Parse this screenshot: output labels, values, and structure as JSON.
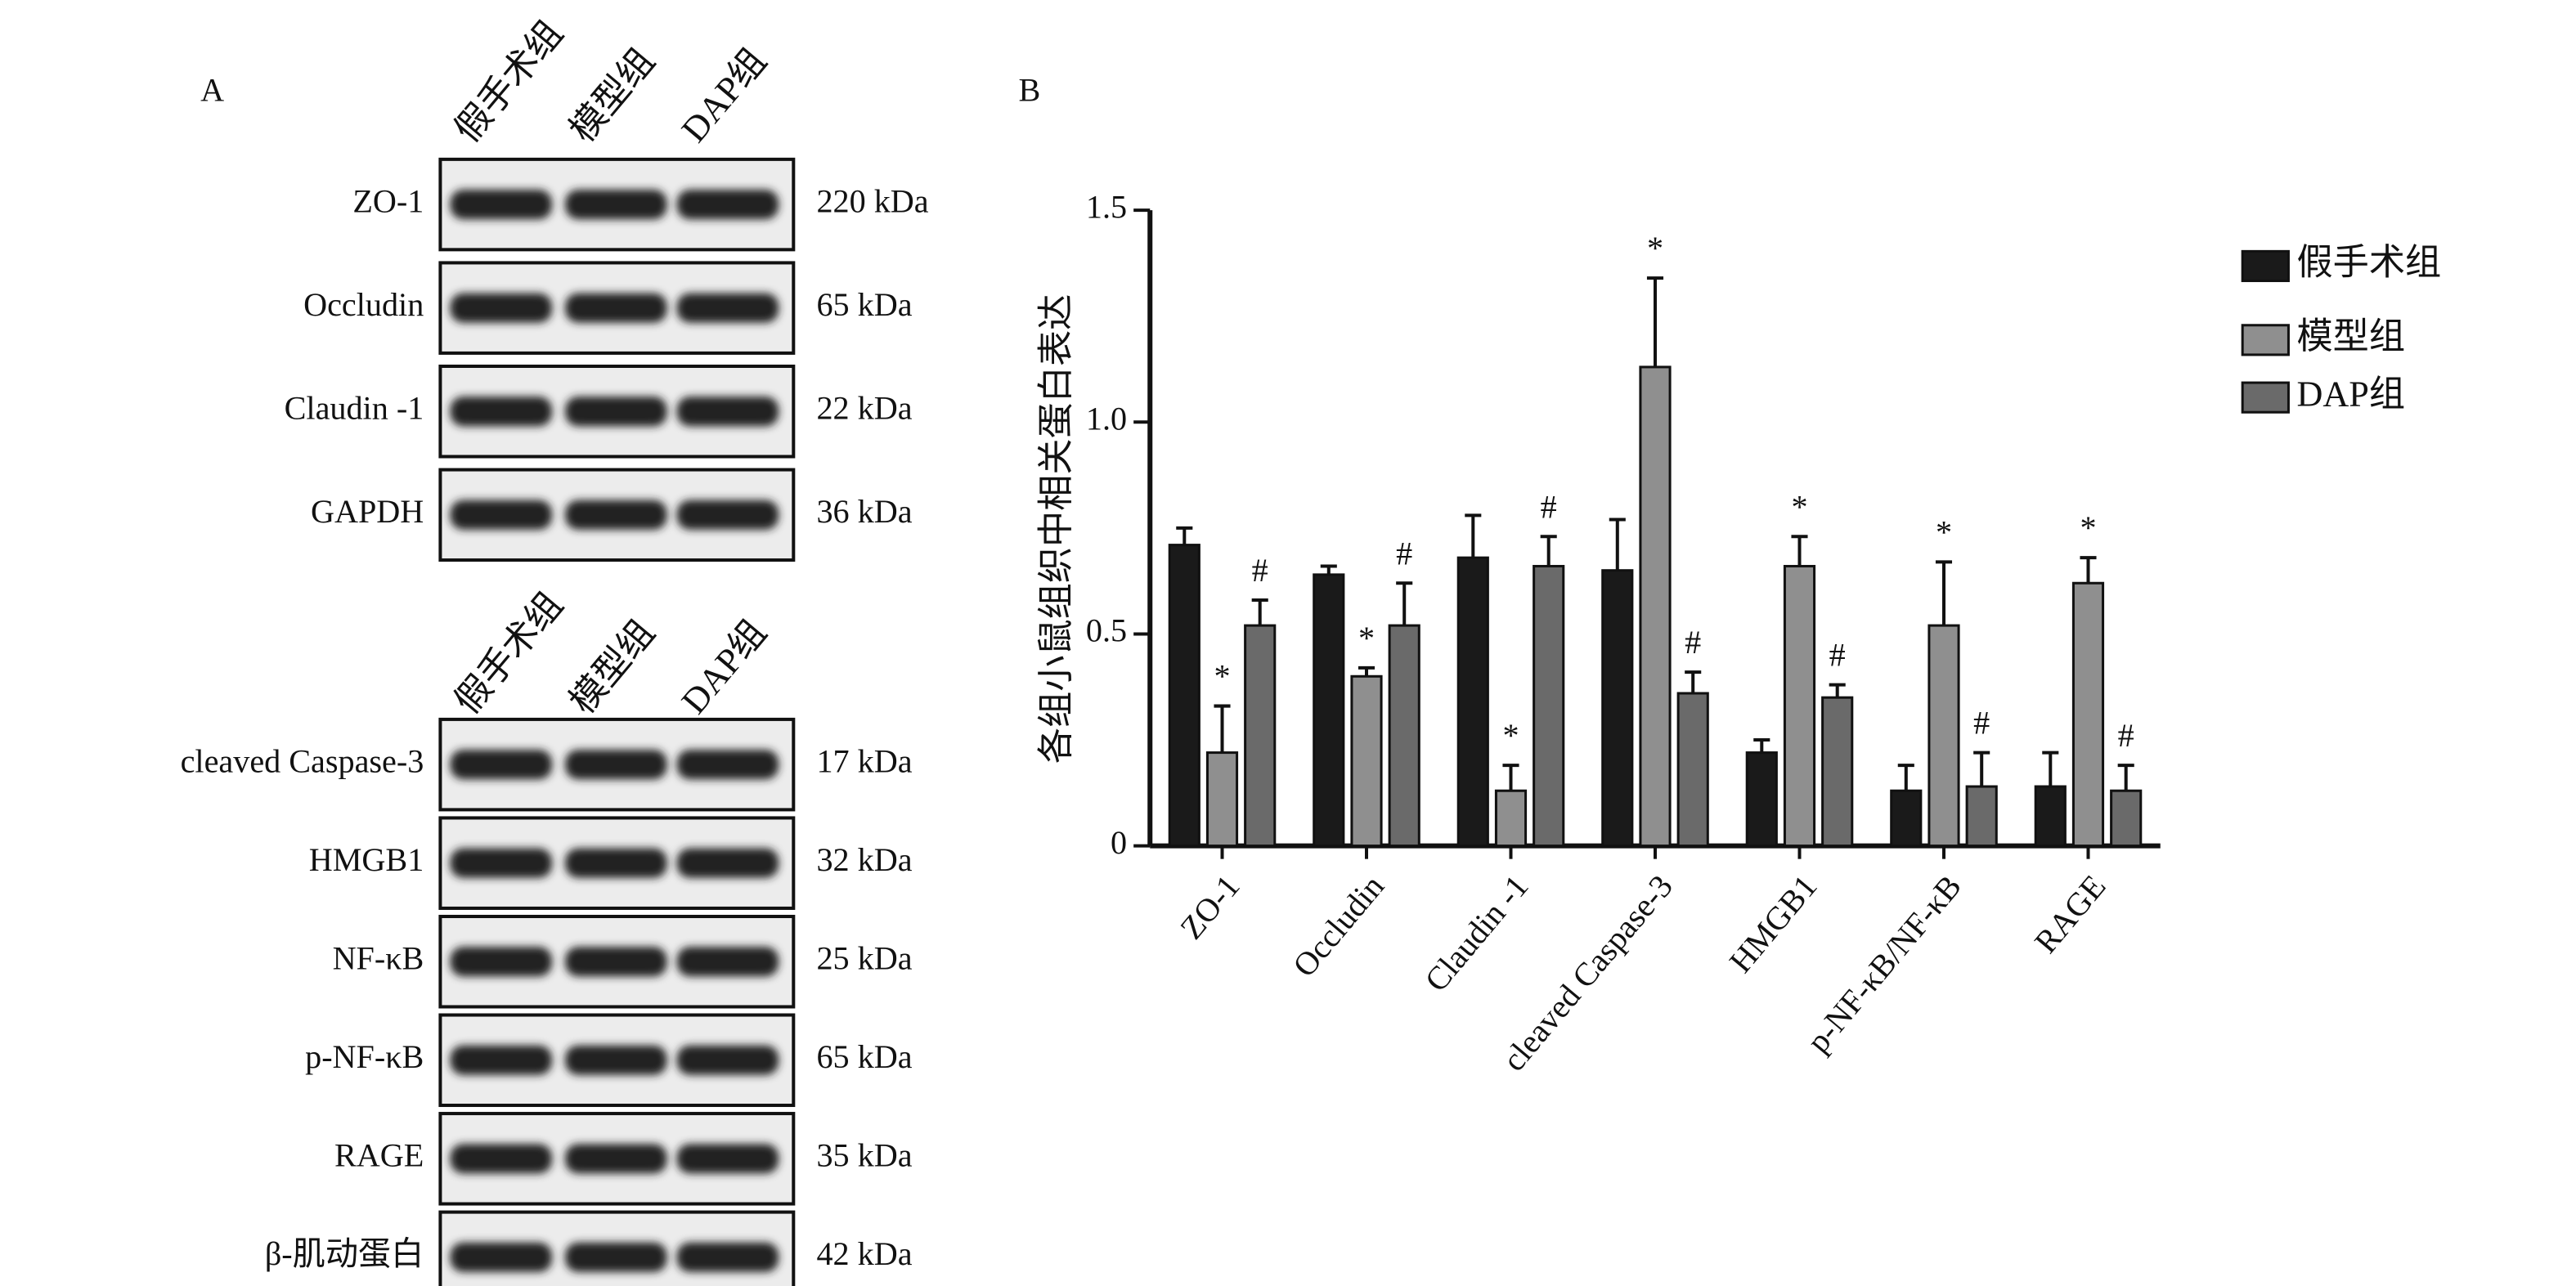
{
  "panel_a": {
    "label": "A",
    "blots": [
      {
        "lanes": [
          "假手术组",
          "模型组",
          "DAP组"
        ],
        "rows": [
          {
            "protein": "ZO-1",
            "size": "220 kDa"
          },
          {
            "protein": "Occludin",
            "size": "65 kDa"
          },
          {
            "protein": "Claudin -1",
            "size": "22 kDa"
          },
          {
            "protein": "GAPDH",
            "size": "36 kDa"
          }
        ]
      },
      {
        "lanes": [
          "假手术组",
          "模型组",
          "DAP组"
        ],
        "rows": [
          {
            "protein": "cleaved Caspase-3",
            "size": "17 kDa"
          },
          {
            "protein": "HMGB1",
            "size": "32 kDa"
          },
          {
            "protein": "NF-κB",
            "size": "25 kDa"
          },
          {
            "protein": "p-NF-κB",
            "size": "65 kDa"
          },
          {
            "protein": "RAGE",
            "size": "35 kDa"
          },
          {
            "protein": "β-肌动蛋白",
            "size": "42 kDa"
          }
        ]
      }
    ]
  },
  "chart_data": {
    "type": "bar",
    "panel_label": "B",
    "y_label": "各组小鼠组织中相关蛋白表达",
    "categories": [
      "ZO-1",
      "Occludin",
      "Claudin -1",
      "cleaved Caspase-3",
      "HMGB1",
      "p-NF-κB/NF-κB",
      "RAGE"
    ],
    "series": [
      {
        "name": "假手术组",
        "color": "#1a1a1a",
        "values": [
          0.71,
          0.64,
          0.68,
          0.65,
          0.22,
          0.13,
          0.14
        ],
        "errors": [
          0.04,
          0.02,
          0.1,
          0.12,
          0.03,
          0.06,
          0.08
        ]
      },
      {
        "name": "模型组",
        "color": "#8f8f8f",
        "values": [
          0.22,
          0.4,
          0.13,
          1.13,
          0.66,
          0.52,
          0.62
        ],
        "errors": [
          0.11,
          0.02,
          0.06,
          0.21,
          0.07,
          0.15,
          0.06
        ],
        "annotations": [
          "*",
          "*",
          "*",
          "*",
          "*",
          "*",
          "*"
        ]
      },
      {
        "name": "DAP组",
        "color": "#6a6a6a",
        "values": [
          0.52,
          0.52,
          0.66,
          0.36,
          0.35,
          0.14,
          0.13
        ],
        "errors": [
          0.06,
          0.1,
          0.07,
          0.05,
          0.03,
          0.08,
          0.06
        ],
        "annotations": [
          "#",
          "#",
          "#",
          "#",
          "#",
          "#",
          "#"
        ]
      }
    ],
    "ylim": [
      0,
      1.5
    ],
    "yticks": [
      0,
      0.5,
      {
        "value": 1,
        "label": "1.0"
      },
      1.5
    ],
    "legend": "right"
  }
}
